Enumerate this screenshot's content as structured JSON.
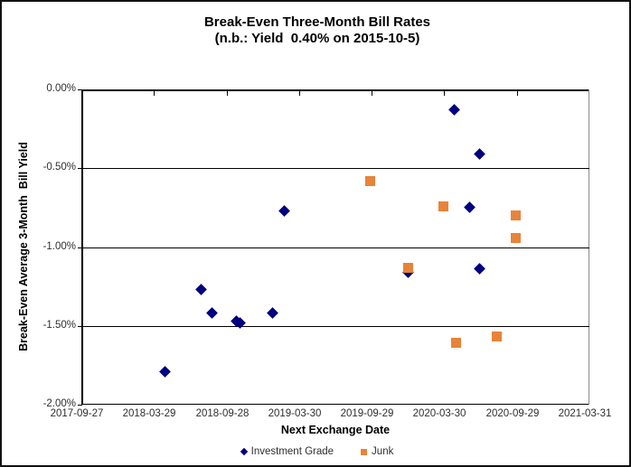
{
  "title": {
    "line1": "Break-Even Three-Month Bill Rates",
    "line2": "(n.b.: Yield  0.40% on 2015-10-5)"
  },
  "chart_data": {
    "type": "scatter",
    "title": "Break-Even Three-Month Bill Rates (n.b.: Yield 0.40% on 2015-10-5)",
    "xlabel": "Next Exchange Date",
    "ylabel": "Break-Even Average 3-Month  Bill Yield",
    "x_range": [
      "2017-09-27",
      "2021-03-31"
    ],
    "ylim": [
      -2.0,
      0.0
    ],
    "x_ticks": [
      "2017-09-27",
      "2018-03-29",
      "2018-09-28",
      "2019-03-30",
      "2019-09-29",
      "2020-03-30",
      "2020-09-29",
      "2021-03-31"
    ],
    "y_ticks": [
      "0.00%",
      "-0.50%",
      "-1.00%",
      "-1.50%",
      "-2.00%"
    ],
    "grid": "horizontal-black-gridlines-every-0.50%",
    "legend_position": "bottom-center",
    "series": [
      {
        "name": "Investment Grade",
        "marker": "diamond",
        "color": "#000080",
        "points": [
          {
            "date": "2018-04-26",
            "value": -1.79
          },
          {
            "date": "2018-07-27",
            "value": -1.27
          },
          {
            "date": "2018-08-22",
            "value": -1.42
          },
          {
            "date": "2018-10-22",
            "value": -1.47
          },
          {
            "date": "2018-11-02",
            "value": -1.48
          },
          {
            "date": "2019-01-23",
            "value": -1.42
          },
          {
            "date": "2019-02-21",
            "value": -0.77
          },
          {
            "date": "2019-12-29",
            "value": -1.16
          },
          {
            "date": "2020-04-24",
            "value": -0.13
          },
          {
            "date": "2020-06-02",
            "value": -0.75
          },
          {
            "date": "2020-06-27",
            "value": -0.41
          },
          {
            "date": "2020-06-27",
            "value": -1.14
          }
        ]
      },
      {
        "name": "Junk",
        "marker": "square",
        "color": "#E8833A",
        "points": [
          {
            "date": "2019-09-26",
            "value": -0.58
          },
          {
            "date": "2019-12-29",
            "value": -1.13
          },
          {
            "date": "2020-03-27",
            "value": -0.74
          },
          {
            "date": "2020-04-28",
            "value": -1.61
          },
          {
            "date": "2020-08-10",
            "value": -1.57
          },
          {
            "date": "2020-09-27",
            "value": -0.8
          },
          {
            "date": "2020-09-27",
            "value": -0.94
          }
        ]
      }
    ]
  }
}
